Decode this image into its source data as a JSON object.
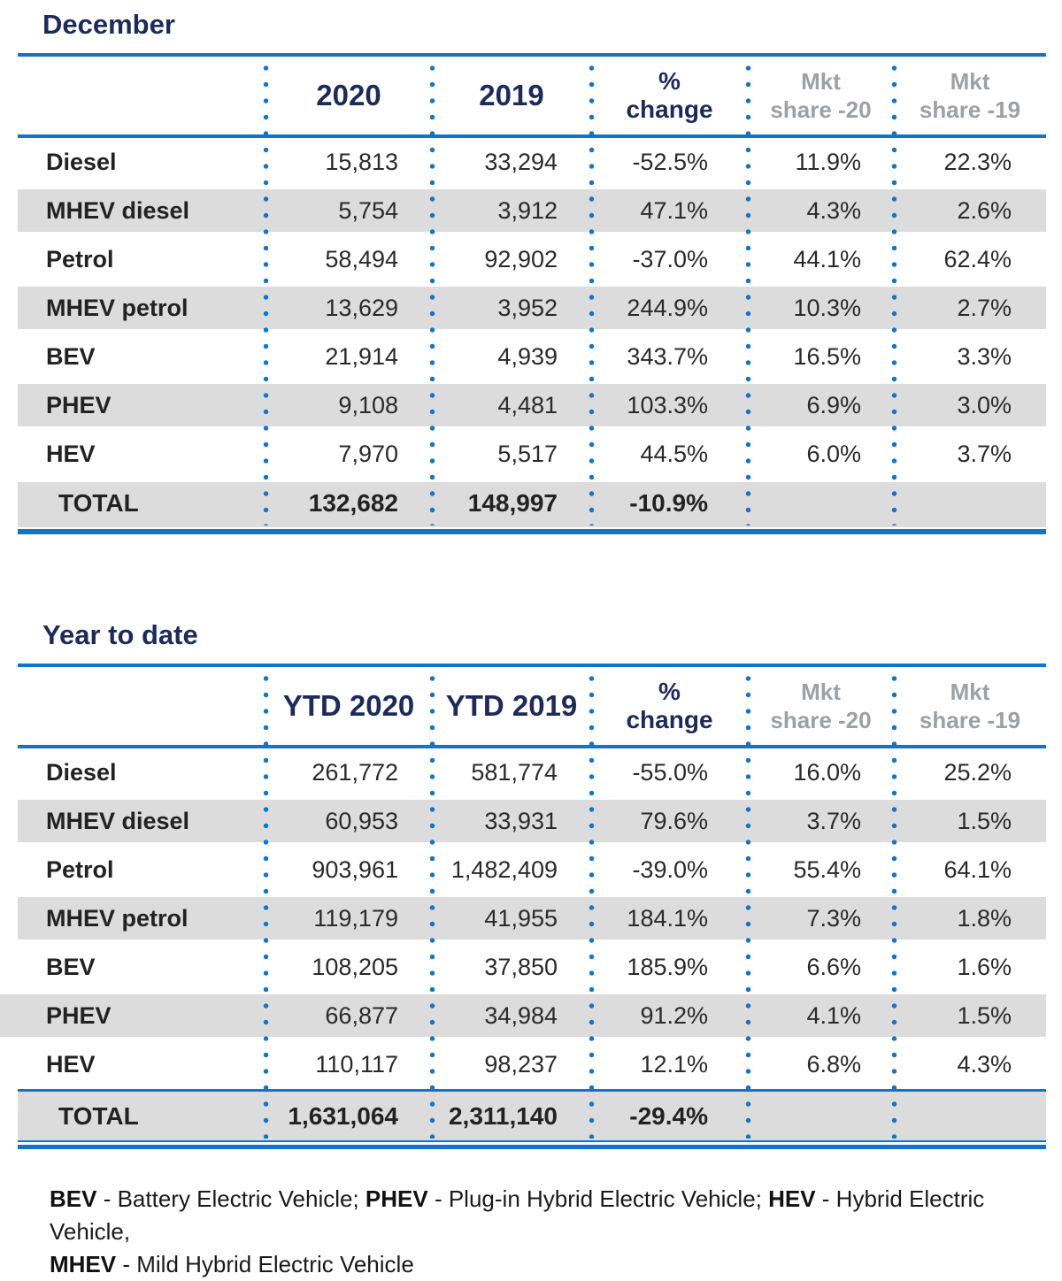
{
  "chart_data": [
    {
      "type": "table",
      "title": "December",
      "columns": [
        "",
        "2020",
        "2019",
        "% change",
        "Mkt share -20",
        "Mkt share -19"
      ],
      "rows": [
        [
          "Diesel",
          "15,813",
          "33,294",
          "-52.5%",
          "11.9%",
          "22.3%"
        ],
        [
          "MHEV diesel",
          "5,754",
          "3,912",
          "47.1%",
          "4.3%",
          "2.6%"
        ],
        [
          "Petrol",
          "58,494",
          "92,902",
          "-37.0%",
          "44.1%",
          "62.4%"
        ],
        [
          "MHEV petrol",
          "13,629",
          "3,952",
          "244.9%",
          "10.3%",
          "2.7%"
        ],
        [
          "BEV",
          "21,914",
          "4,939",
          "343.7%",
          "16.5%",
          "3.3%"
        ],
        [
          "PHEV",
          "9,108",
          "4,481",
          "103.3%",
          "6.9%",
          "3.0%"
        ],
        [
          "HEV",
          "7,970",
          "5,517",
          "44.5%",
          "6.0%",
          "3.7%"
        ],
        [
          "TOTAL",
          "132,682",
          "148,997",
          "-10.9%",
          "",
          ""
        ]
      ]
    },
    {
      "type": "table",
      "title": "Year to date",
      "columns": [
        "",
        "YTD 2020",
        "YTD 2019",
        "% change",
        "Mkt share -20",
        "Mkt share -19"
      ],
      "rows": [
        [
          "Diesel",
          "261,772",
          "581,774",
          "-55.0%",
          "16.0%",
          "25.2%"
        ],
        [
          "MHEV diesel",
          "60,953",
          "33,931",
          "79.6%",
          "3.7%",
          "1.5%"
        ],
        [
          "Petrol",
          "903,961",
          "1,482,409",
          "-39.0%",
          "55.4%",
          "64.1%"
        ],
        [
          "MHEV petrol",
          "119,179",
          "41,955",
          "184.1%",
          "7.3%",
          "1.8%"
        ],
        [
          "BEV",
          "108,205",
          "37,850",
          "185.9%",
          "6.6%",
          "1.6%"
        ],
        [
          "PHEV",
          "66,877",
          "34,984",
          "91.2%",
          "4.1%",
          "1.5%"
        ],
        [
          "HEV",
          "110,117",
          "98,237",
          "12.1%",
          "6.8%",
          "4.3%"
        ],
        [
          "TOTAL",
          "1,631,064",
          "2,311,140",
          "-29.4%",
          "",
          ""
        ]
      ]
    }
  ],
  "ui": {
    "tables": [
      {
        "year_col_1": "2020",
        "year_col_2": "2019",
        "pct_l1": "%",
        "pct_l2": "change",
        "mkt20_l1": "Mkt",
        "mkt20_l2": "share -20",
        "mkt19_l1": "Mkt",
        "mkt19_l2": "share -19"
      },
      {
        "year_col_1": "YTD 2020",
        "year_col_2": "YTD 2019",
        "pct_l1": "%",
        "pct_l2": "change",
        "mkt20_l1": "Mkt",
        "mkt20_l2": "share -20",
        "mkt19_l1": "Mkt",
        "mkt19_l2": "share -19"
      }
    ]
  },
  "footnote": {
    "abbr1": "BEV",
    "def1": " - Battery Electric Vehicle; ",
    "abbr2": "PHEV",
    "def2": " - Plug-in Hybrid Electric Vehicle; ",
    "abbr3": "HEV",
    "def3": " - Hybrid Electric Vehicle,",
    "abbr4": "MHEV",
    "def4": " - Mild Hybrid Electric Vehicle"
  },
  "colors": {
    "accent_blue": "#1274c9",
    "navy": "#1e2a5a",
    "stripe_gray": "#dcdcdd",
    "muted_header_gray": "#9ca1a6"
  }
}
